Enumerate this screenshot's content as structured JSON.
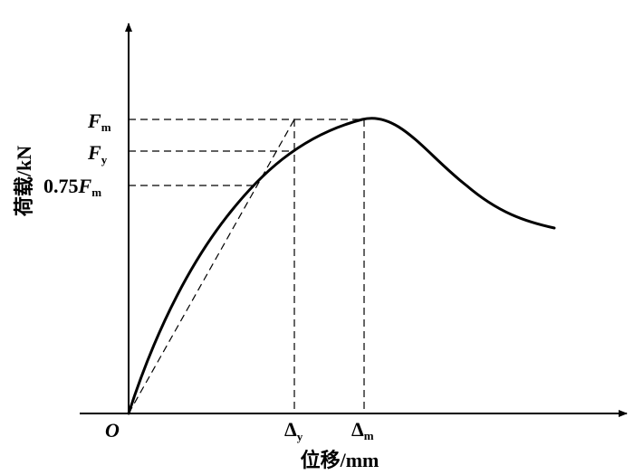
{
  "diagram": {
    "origin_label": "O",
    "x_axis_title": "位移/mm",
    "y_axis_title": "荷载/kN",
    "y_labels": {
      "fm": {
        "prefix": "",
        "main": "F",
        "sub": "m"
      },
      "fy": {
        "prefix": "",
        "main": "F",
        "sub": "y"
      },
      "f075": {
        "prefix": "0.75",
        "main": "F",
        "sub": "m"
      }
    },
    "x_labels": {
      "dy": {
        "main": "Δ",
        "sub": "y"
      },
      "dm": {
        "main": "Δ",
        "sub": "m"
      }
    }
  }
}
